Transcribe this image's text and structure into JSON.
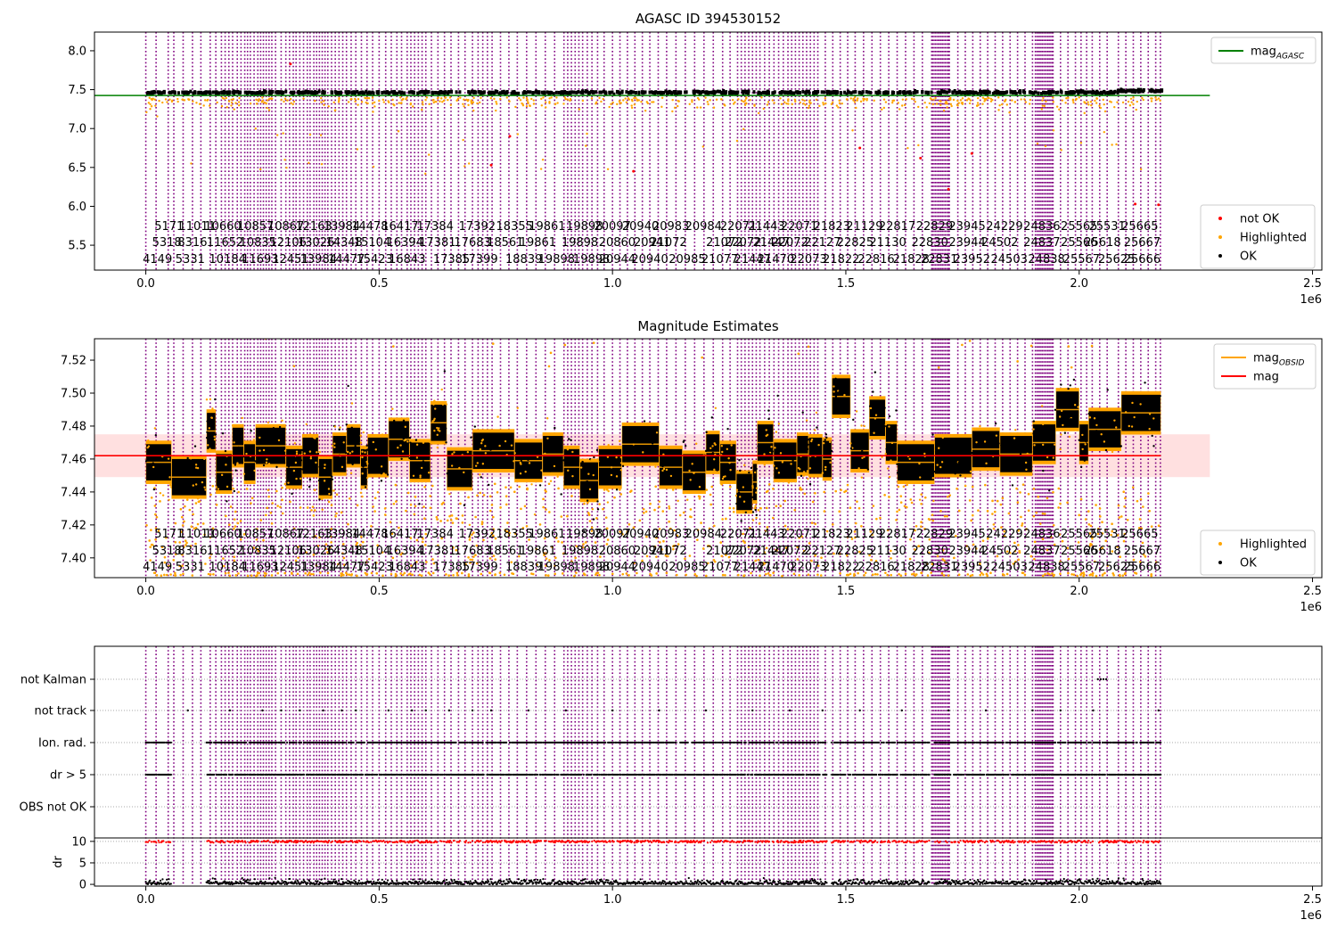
{
  "chart_data": [
    {
      "type": "scatter",
      "title": "AGASC ID 394530152",
      "xlim": [
        -110000,
        2520000
      ],
      "ylim": [
        5.18,
        8.24
      ],
      "x_offset_label": "1e6",
      "x_ticks": [
        0,
        500000,
        1000000,
        1500000,
        2000000,
        2500000
      ],
      "x_tick_labels": [
        "0.0",
        "0.5",
        "1.0",
        "1.5",
        "2.0",
        "2.5"
      ],
      "y_ticks": [
        5.5,
        6.0,
        6.5,
        7.0,
        7.5,
        8.0
      ],
      "y_tick_labels": [
        "5.5",
        "6.0",
        "6.5",
        "7.0",
        "7.5",
        "8.0"
      ],
      "line": {
        "name": "mag_AGASC",
        "y": 7.425,
        "x_range": [
          -110000,
          2280000
        ],
        "color": "#008000"
      },
      "legend_upper": [
        {
          "label": "mag",
          "sub": "AGASC",
          "kind": "line",
          "color": "#008000"
        }
      ],
      "legend_lower": [
        {
          "label": "not OK",
          "kind": "dot",
          "color": "#ff0000"
        },
        {
          "label": "Highlighted",
          "kind": "dot",
          "color": "#ffa500"
        },
        {
          "label": "OK",
          "kind": "dot",
          "color": "#000000"
        }
      ],
      "band": {
        "center": 7.463,
        "spread": 0.008,
        "x_range": [
          0,
          2175000
        ]
      },
      "outliers_red": [
        [
          740000,
          6.53
        ],
        [
          1045000,
          6.45
        ],
        [
          1530000,
          6.75
        ],
        [
          1660000,
          6.62
        ],
        [
          1770000,
          6.68
        ],
        [
          2120000,
          6.03
        ],
        [
          2170000,
          6.02
        ],
        [
          780000,
          6.9
        ],
        [
          1720000,
          6.22
        ],
        [
          310000,
          7.83
        ]
      ]
    },
    {
      "type": "scatter",
      "title": "Magnitude Estimates",
      "xlim": [
        -110000,
        2520000
      ],
      "ylim": [
        7.388,
        7.533
      ],
      "x_offset_label": "1e6",
      "x_ticks": [
        0,
        500000,
        1000000,
        1500000,
        2000000,
        2500000
      ],
      "x_tick_labels": [
        "0.0",
        "0.5",
        "1.0",
        "1.5",
        "2.0",
        "2.5"
      ],
      "y_ticks": [
        7.4,
        7.42,
        7.44,
        7.46,
        7.48,
        7.5,
        7.52
      ],
      "y_tick_labels": [
        "7.40",
        "7.42",
        "7.44",
        "7.46",
        "7.48",
        "7.50",
        "7.52"
      ],
      "mag_line": {
        "name": "mag",
        "y": 7.462,
        "band": [
          7.449,
          7.475
        ],
        "x_range": [
          -110000,
          2280000
        ],
        "color": "#ff0000"
      },
      "legend_upper": [
        {
          "label": "mag",
          "sub": "OBSID",
          "kind": "line",
          "color": "#ffa500"
        },
        {
          "label": "mag",
          "sub": "",
          "kind": "line",
          "color": "#ff0000"
        }
      ],
      "legend_lower": [
        {
          "label": "Highlighted",
          "kind": "dot",
          "color": "#ffa500"
        },
        {
          "label": "OK",
          "kind": "dot",
          "color": "#000000"
        }
      ],
      "segments": [
        [
          0,
          55000,
          7.458
        ],
        [
          55000,
          130000,
          7.449
        ],
        [
          130000,
          150000,
          7.477
        ],
        [
          150000,
          185000,
          7.452
        ],
        [
          185000,
          210000,
          7.468
        ],
        [
          210000,
          235000,
          7.458
        ],
        [
          235000,
          300000,
          7.468
        ],
        [
          300000,
          335000,
          7.455
        ],
        [
          335000,
          370000,
          7.462
        ],
        [
          370000,
          400000,
          7.449
        ],
        [
          400000,
          430000,
          7.463
        ],
        [
          430000,
          460000,
          7.468
        ],
        [
          460000,
          475000,
          7.455
        ],
        [
          475000,
          520000,
          7.462
        ],
        [
          520000,
          565000,
          7.472
        ],
        [
          565000,
          610000,
          7.459
        ],
        [
          610000,
          645000,
          7.482
        ],
        [
          645000,
          700000,
          7.454
        ],
        [
          700000,
          790000,
          7.465
        ],
        [
          790000,
          850000,
          7.459
        ],
        [
          850000,
          895000,
          7.463
        ],
        [
          895000,
          930000,
          7.455
        ],
        [
          930000,
          970000,
          7.447
        ],
        [
          970000,
          1020000,
          7.455
        ],
        [
          1020000,
          1100000,
          7.469
        ],
        [
          1100000,
          1150000,
          7.455
        ],
        [
          1150000,
          1200000,
          7.452
        ],
        [
          1200000,
          1230000,
          7.464
        ],
        [
          1230000,
          1265000,
          7.458
        ],
        [
          1265000,
          1300000,
          7.44
        ],
        [
          1300000,
          1310000,
          7.446
        ],
        [
          1310000,
          1345000,
          7.47
        ],
        [
          1345000,
          1395000,
          7.459
        ],
        [
          1395000,
          1420000,
          7.463
        ],
        [
          1420000,
          1450000,
          7.462
        ],
        [
          1450000,
          1470000,
          7.46
        ],
        [
          1470000,
          1510000,
          7.498
        ],
        [
          1510000,
          1550000,
          7.465
        ],
        [
          1550000,
          1585000,
          7.485
        ],
        [
          1585000,
          1610000,
          7.47
        ],
        [
          1610000,
          1690000,
          7.458
        ],
        [
          1690000,
          1770000,
          7.462
        ],
        [
          1770000,
          1830000,
          7.466
        ],
        [
          1830000,
          1900000,
          7.463
        ],
        [
          1900000,
          1950000,
          7.47
        ],
        [
          1950000,
          2000000,
          7.49
        ],
        [
          2000000,
          2020000,
          7.47
        ],
        [
          2020000,
          2090000,
          7.478
        ],
        [
          2090000,
          2175000,
          7.488
        ]
      ]
    },
    {
      "type": "scatter",
      "title": "",
      "xlim": [
        -110000,
        2520000
      ],
      "x_offset_label": "1e6",
      "x_ticks": [
        0,
        500000,
        1000000,
        1500000,
        2000000,
        2500000
      ],
      "x_tick_labels": [
        "0.0",
        "0.5",
        "1.0",
        "1.5",
        "2.0",
        "2.5"
      ],
      "flag_rows": [
        "not Kalman",
        "not track",
        "Ion. rad.",
        "dr > 5",
        "OBS not OK"
      ],
      "dr_axis": {
        "ylabel": "dr",
        "ylim": [
          -0.4,
          10.8
        ],
        "y_ticks": [
          0,
          5,
          10
        ],
        "y_tick_labels": [
          "0",
          "5",
          "10"
        ]
      }
    }
  ],
  "obsid_lines": [
    0,
    22000,
    48000,
    60000,
    80000,
    100000,
    118000,
    138000,
    150000,
    162000,
    170000,
    178000,
    186000,
    196000,
    204000,
    212000,
    218000,
    224000,
    232000,
    240000,
    246000,
    252000,
    258000,
    264000,
    270000,
    278000,
    290000,
    300000,
    308000,
    316000,
    322000,
    330000,
    338000,
    346000,
    352000,
    360000,
    366000,
    372000,
    378000,
    384000,
    390000,
    398000,
    406000,
    414000,
    422000,
    430000,
    440000,
    450000,
    462000,
    474000,
    486000,
    500000,
    514000,
    526000,
    538000,
    548000,
    560000,
    568000,
    576000,
    584000,
    592000,
    600000,
    612000,
    626000,
    640000,
    654000,
    670000,
    684000,
    700000,
    712000,
    722000,
    732000,
    742000,
    760000,
    778000,
    796000,
    816000,
    836000,
    856000,
    876000,
    896000,
    904000,
    912000,
    920000,
    928000,
    936000,
    946000,
    956000,
    968000,
    982000,
    1000000,
    1016000,
    1032000,
    1048000,
    1064000,
    1080000,
    1098000,
    1116000,
    1136000,
    1156000,
    1176000,
    1196000,
    1216000,
    1236000,
    1252000,
    1268000,
    1276000,
    1284000,
    1292000,
    1300000,
    1308000,
    1316000,
    1326000,
    1336000,
    1346000,
    1356000,
    1366000,
    1376000,
    1384000,
    1392000,
    1400000,
    1408000,
    1416000,
    1424000,
    1432000,
    1440000,
    1456000,
    1472000,
    1488000,
    1504000,
    1520000,
    1538000,
    1556000,
    1574000,
    1592000,
    1610000,
    1628000,
    1646000,
    1664000,
    1684000,
    1720000,
    1740000,
    1756000,
    1772000,
    1788000,
    1804000,
    1820000,
    1836000,
    1852000,
    1868000,
    1884000,
    1900000,
    1944000,
    1960000,
    1976000,
    1992000,
    2004000,
    2016000,
    2028000,
    2044000,
    2060000,
    2084000,
    2100000,
    2116000,
    2132000,
    2148000,
    2164000,
    2174000
  ],
  "obsid_dense_ranges": [
    [
      1686000,
      1722000
    ],
    [
      1906000,
      1944000
    ]
  ],
  "obsid_labels": [
    {
      "x": 25000,
      "row": 2,
      "text": "4149"
    },
    {
      "x": 45000,
      "row": 1,
      "text": "5318"
    },
    {
      "x": 50000,
      "row": 0,
      "text": "5171"
    },
    {
      "x": 110000,
      "row": 0,
      "text": "11011"
    },
    {
      "x": 100000,
      "row": 1,
      "text": "8316"
    },
    {
      "x": 95000,
      "row": 2,
      "text": "5331"
    },
    {
      "x": 165000,
      "row": 0,
      "text": "10660"
    },
    {
      "x": 170000,
      "row": 1,
      "text": "11652"
    },
    {
      "x": 175000,
      "row": 2,
      "text": "10184"
    },
    {
      "x": 235000,
      "row": 0,
      "text": "10857"
    },
    {
      "x": 240000,
      "row": 1,
      "text": "10835"
    },
    {
      "x": 245000,
      "row": 2,
      "text": "11693"
    },
    {
      "x": 300000,
      "row": 0,
      "text": "10867"
    },
    {
      "x": 305000,
      "row": 1,
      "text": "12106"
    },
    {
      "x": 310000,
      "row": 2,
      "text": "12451"
    },
    {
      "x": 360000,
      "row": 0,
      "text": "12163"
    },
    {
      "x": 365000,
      "row": 1,
      "text": "13026"
    },
    {
      "x": 370000,
      "row": 2,
      "text": "13984"
    },
    {
      "x": 420000,
      "row": 0,
      "text": "13984"
    },
    {
      "x": 425000,
      "row": 1,
      "text": "14348"
    },
    {
      "x": 430000,
      "row": 2,
      "text": "14477"
    },
    {
      "x": 480000,
      "row": 0,
      "text": "14478"
    },
    {
      "x": 485000,
      "row": 1,
      "text": "15104"
    },
    {
      "x": 490000,
      "row": 2,
      "text": "15423"
    },
    {
      "x": 545000,
      "row": 0,
      "text": "16417"
    },
    {
      "x": 555000,
      "row": 1,
      "text": "16394"
    },
    {
      "x": 560000,
      "row": 2,
      "text": "16843"
    },
    {
      "x": 620000,
      "row": 0,
      "text": "17384"
    },
    {
      "x": 625000,
      "row": 1,
      "text": "17381"
    },
    {
      "x": 655000,
      "row": 2,
      "text": "17385"
    },
    {
      "x": 710000,
      "row": 0,
      "text": "17392"
    },
    {
      "x": 700000,
      "row": 1,
      "text": "17683"
    },
    {
      "x": 715000,
      "row": 2,
      "text": "17399"
    },
    {
      "x": 790000,
      "row": 0,
      "text": "18355"
    },
    {
      "x": 770000,
      "row": 1,
      "text": "18561"
    },
    {
      "x": 810000,
      "row": 2,
      "text": "18839"
    },
    {
      "x": 860000,
      "row": 0,
      "text": "19861"
    },
    {
      "x": 840000,
      "row": 1,
      "text": "19861"
    },
    {
      "x": 880000,
      "row": 2,
      "text": "19898"
    },
    {
      "x": 940000,
      "row": 0,
      "text": "19898"
    },
    {
      "x": 930000,
      "row": 1,
      "text": "19898"
    },
    {
      "x": 955000,
      "row": 2,
      "text": "19898"
    },
    {
      "x": 1000000,
      "row": 0,
      "text": "20097"
    },
    {
      "x": 1010000,
      "row": 1,
      "text": "20860"
    },
    {
      "x": 1010000,
      "row": 2,
      "text": "20944"
    },
    {
      "x": 1060000,
      "row": 0,
      "text": "20940"
    },
    {
      "x": 1085000,
      "row": 1,
      "text": "20941"
    },
    {
      "x": 1080000,
      "row": 2,
      "text": "20940"
    },
    {
      "x": 1125000,
      "row": 0,
      "text": "20983"
    },
    {
      "x": 1120000,
      "row": 1,
      "text": "21072"
    },
    {
      "x": 1160000,
      "row": 2,
      "text": "20985"
    },
    {
      "x": 1195000,
      "row": 0,
      "text": "20984"
    },
    {
      "x": 1240000,
      "row": 1,
      "text": "21072"
    },
    {
      "x": 1230000,
      "row": 2,
      "text": "21077"
    },
    {
      "x": 1270000,
      "row": 0,
      "text": "22071"
    },
    {
      "x": 1280000,
      "row": 1,
      "text": "22072"
    },
    {
      "x": 1300000,
      "row": 2,
      "text": "21447"
    },
    {
      "x": 1330000,
      "row": 0,
      "text": "21443"
    },
    {
      "x": 1340000,
      "row": 1,
      "text": "21447"
    },
    {
      "x": 1350000,
      "row": 2,
      "text": "21470"
    },
    {
      "x": 1400000,
      "row": 0,
      "text": "22071"
    },
    {
      "x": 1380000,
      "row": 1,
      "text": "22072"
    },
    {
      "x": 1420000,
      "row": 2,
      "text": "22073"
    },
    {
      "x": 1470000,
      "row": 0,
      "text": "21823"
    },
    {
      "x": 1450000,
      "row": 1,
      "text": "22127"
    },
    {
      "x": 1490000,
      "row": 2,
      "text": "21822"
    },
    {
      "x": 1540000,
      "row": 0,
      "text": "21129"
    },
    {
      "x": 1520000,
      "row": 1,
      "text": "22825"
    },
    {
      "x": 1565000,
      "row": 2,
      "text": "22816"
    },
    {
      "x": 1610000,
      "row": 0,
      "text": "22817"
    },
    {
      "x": 1590000,
      "row": 1,
      "text": "21130"
    },
    {
      "x": 1640000,
      "row": 2,
      "text": "21828"
    },
    {
      "x": 1690000,
      "row": 0,
      "text": "22829"
    },
    {
      "x": 1680000,
      "row": 1,
      "text": "22830"
    },
    {
      "x": 1700000,
      "row": 2,
      "text": "22831"
    },
    {
      "x": 1760000,
      "row": 0,
      "text": "23945"
    },
    {
      "x": 1760000,
      "row": 1,
      "text": "23944"
    },
    {
      "x": 1770000,
      "row": 2,
      "text": "23952"
    },
    {
      "x": 1840000,
      "row": 0,
      "text": "24229"
    },
    {
      "x": 1830000,
      "row": 1,
      "text": "24502"
    },
    {
      "x": 1850000,
      "row": 2,
      "text": "24503"
    },
    {
      "x": 1920000,
      "row": 0,
      "text": "24836"
    },
    {
      "x": 1920000,
      "row": 1,
      "text": "24837"
    },
    {
      "x": 1930000,
      "row": 2,
      "text": "24838"
    },
    {
      "x": 2000000,
      "row": 0,
      "text": "25565"
    },
    {
      "x": 2000000,
      "row": 1,
      "text": "25566"
    },
    {
      "x": 2005000,
      "row": 2,
      "text": "25567"
    },
    {
      "x": 2060000,
      "row": 0,
      "text": "25531"
    },
    {
      "x": 2050000,
      "row": 1,
      "text": "25618"
    },
    {
      "x": 2080000,
      "row": 2,
      "text": "25625"
    },
    {
      "x": 2130000,
      "row": 0,
      "text": "25665"
    },
    {
      "x": 2135000,
      "row": 1,
      "text": "25667"
    },
    {
      "x": 2135000,
      "row": 2,
      "text": "25666"
    }
  ],
  "colors": {
    "ok": "#000000",
    "highlighted": "#ffa500",
    "not_ok": "#ff0000",
    "obsid_line": "#800080",
    "mag_agasc": "#008000",
    "mag": "#ff0000",
    "mag_obsid": "#ffa500"
  }
}
